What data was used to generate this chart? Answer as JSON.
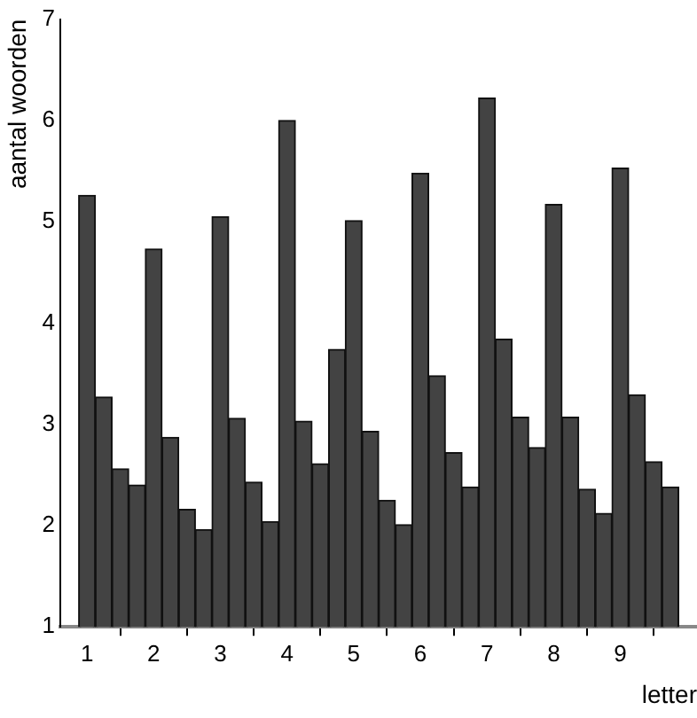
{
  "chart_data": {
    "type": "histogram",
    "xlabel": "letter",
    "ylabel": "aantal woorden",
    "bins": [
      0.875,
      1.125,
      1.375,
      1.625,
      1.875,
      2.125,
      2.375,
      2.625,
      2.875,
      3.125,
      3.375,
      3.625,
      3.875,
      4.125,
      4.375,
      4.625,
      4.875,
      5.125,
      5.375,
      5.625,
      5.875,
      6.125,
      6.375,
      6.625,
      6.875,
      7.125,
      7.375,
      7.625,
      7.875,
      8.125,
      8.375,
      8.625,
      8.875,
      9.125,
      9.375,
      9.625,
      9.875
    ],
    "values": [
      5.26,
      3.27,
      2.56,
      2.4,
      4.73,
      2.87,
      2.16,
      1.96,
      5.05,
      3.06,
      2.43,
      2.04,
      6.0,
      3.03,
      2.61,
      3.74,
      5.01,
      2.93,
      2.25,
      2.01,
      5.48,
      3.48,
      2.72,
      2.38,
      6.22,
      3.84,
      3.07,
      2.77,
      5.17,
      3.07,
      2.36,
      2.12,
      5.53,
      3.29,
      2.63,
      2.38
    ],
    "color": "#434343",
    "xlim": [
      0.6,
      10.15
    ],
    "xticks": [
      1,
      2,
      3,
      4,
      5,
      6,
      7,
      8,
      9
    ],
    "ylim": [
      1,
      7
    ],
    "yticks": [
      1,
      2,
      3,
      4,
      5,
      6,
      7
    ],
    "grid": false,
    "legend": false
  }
}
